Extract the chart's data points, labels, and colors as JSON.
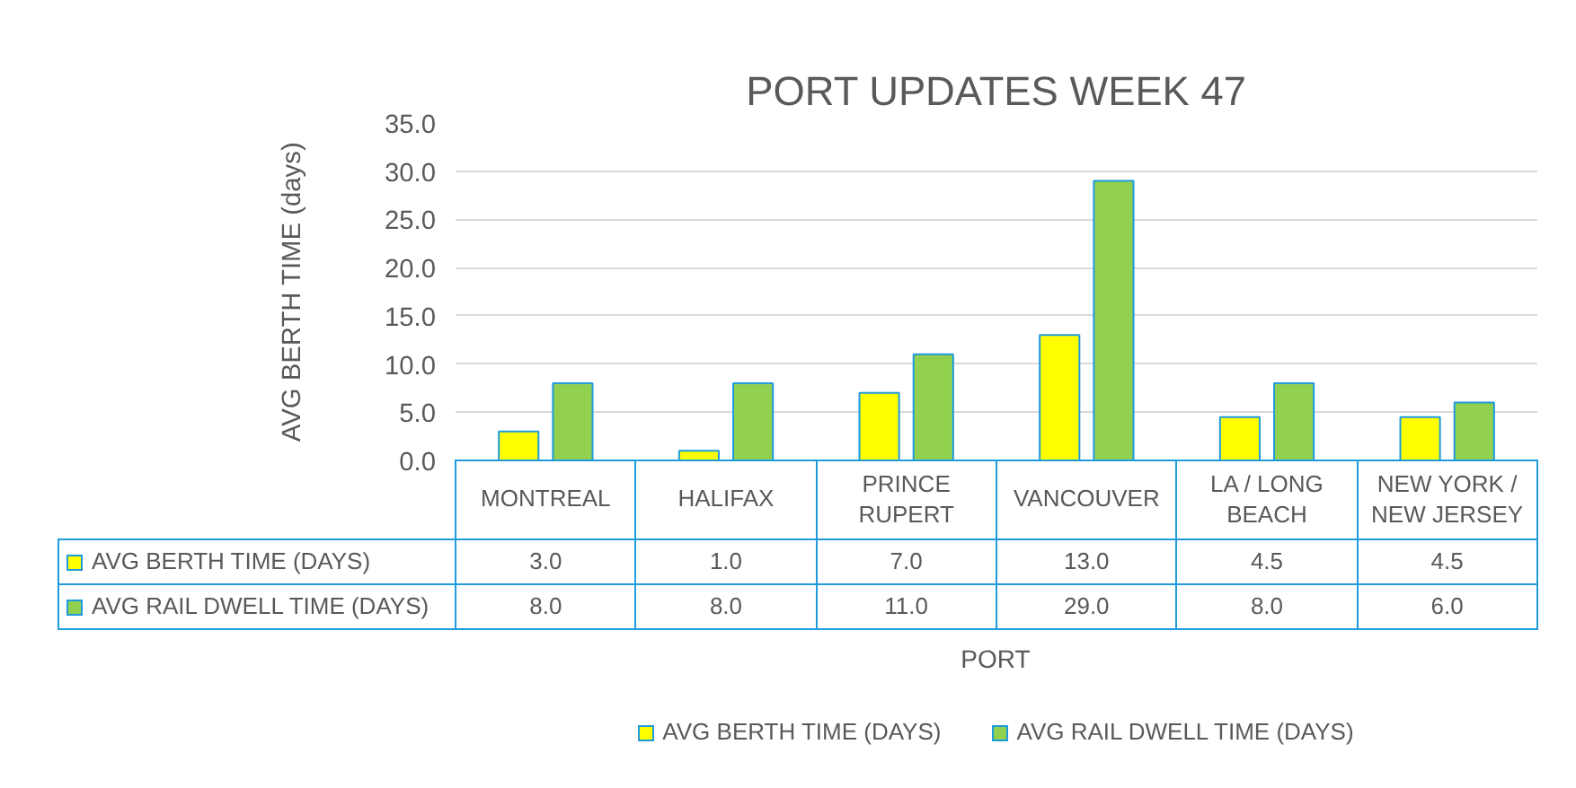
{
  "chart_data": {
    "type": "bar",
    "title": "PORT UPDATES WEEK 47",
    "xlabel": "PORT",
    "ylabel": "AVG BERTH TIME (days)",
    "categories": [
      "MONTREAL",
      "HALIFAX",
      "PRINCE RUPERT",
      "VANCOUVER",
      "LA / LONG BEACH",
      "NEW YORK / NEW JERSEY"
    ],
    "series": [
      {
        "name": "AVG BERTH TIME (DAYS)",
        "color": "#ffff00",
        "values": [
          3.0,
          1.0,
          7.0,
          13.0,
          4.5,
          4.5
        ],
        "value_labels": [
          "3.0",
          "1.0",
          "7.0",
          "13.0",
          "4.5",
          "4.5"
        ]
      },
      {
        "name": "AVG RAIL DWELL TIME (DAYS)",
        "color": "#92d050",
        "values": [
          8.0,
          8.0,
          11.0,
          29.0,
          8.0,
          6.0
        ],
        "value_labels": [
          "8.0",
          "8.0",
          "11.0",
          "29.0",
          "8.0",
          "6.0"
        ]
      }
    ],
    "ylim": [
      0,
      35
    ],
    "yticks": [
      {
        "value": 0,
        "label": "0.0"
      },
      {
        "value": 5,
        "label": "5.0"
      },
      {
        "value": 10,
        "label": "10.0"
      },
      {
        "value": 15,
        "label": "15.0"
      },
      {
        "value": 20,
        "label": "20.0"
      },
      {
        "value": 25,
        "label": "25.0"
      },
      {
        "value": 30,
        "label": "30.0"
      },
      {
        "value": 35,
        "label": "35.0"
      }
    ],
    "grid": "y",
    "legend": "bottom"
  }
}
